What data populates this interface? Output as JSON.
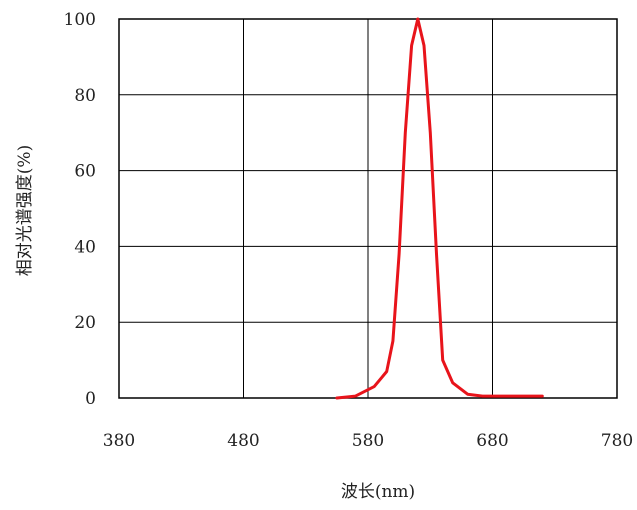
{
  "chart_data": {
    "type": "line",
    "title": "",
    "xlabel": "波长(nm)",
    "ylabel": "相对光谱强度(%)",
    "xlim": [
      380,
      780
    ],
    "ylim": [
      0,
      100
    ],
    "x_ticks": [
      "380",
      "480",
      "580",
      "680",
      "780"
    ],
    "y_ticks": [
      "100",
      "80",
      "60",
      "40",
      "20",
      "0"
    ],
    "grid": true,
    "series": [
      {
        "color": "#e8141b",
        "x": [
          555,
          570,
          585,
          595,
          600,
          605,
          610,
          615,
          620,
          625,
          630,
          635,
          640,
          648,
          660,
          672,
          690,
          720
        ],
        "y": [
          0,
          0.5,
          3,
          7,
          15,
          38,
          70,
          93,
          100,
          93,
          70,
          38,
          10,
          4,
          1,
          0.5,
          0.5,
          0.5
        ]
      }
    ]
  }
}
